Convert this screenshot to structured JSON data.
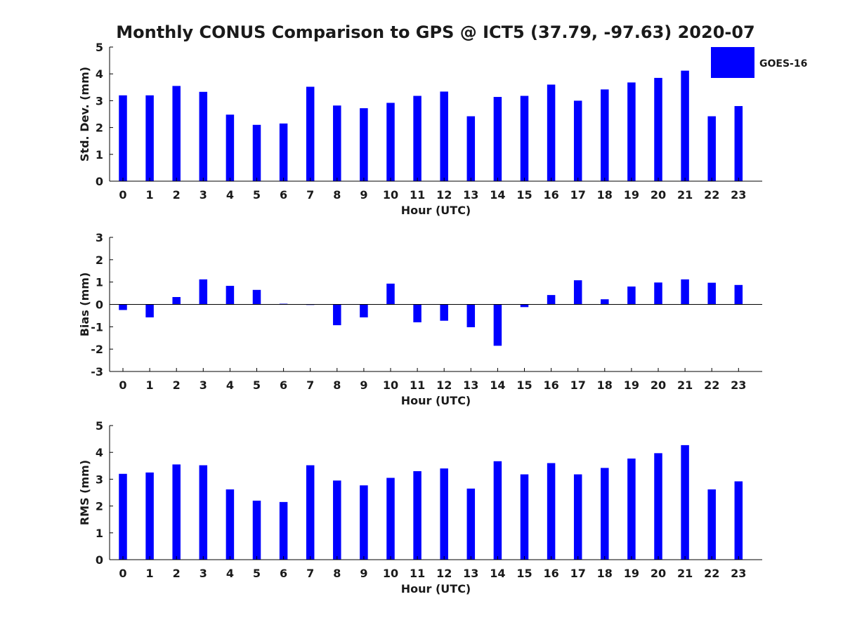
{
  "title": "Monthly CONUS Comparison to GPS @ ICT5 (37.79, -97.63) 2020-07",
  "legend": {
    "label": "GOES-16",
    "color": "#0000ff",
    "placement": "top-right"
  },
  "chart_data": [
    {
      "type": "bar",
      "xlabel": "Hour (UTC)",
      "ylabel": "Std. Dev. (mm)",
      "ylim": [
        0,
        5
      ],
      "yticks": [
        "0",
        "1",
        "2",
        "3",
        "4",
        "5"
      ],
      "categories": [
        "0",
        "1",
        "2",
        "3",
        "4",
        "5",
        "6",
        "7",
        "8",
        "9",
        "10",
        "11",
        "12",
        "13",
        "14",
        "15",
        "16",
        "17",
        "18",
        "19",
        "20",
        "21",
        "22",
        "23"
      ],
      "series": [
        {
          "name": "GOES-16",
          "values": [
            3.2,
            3.2,
            3.55,
            3.33,
            2.48,
            2.1,
            2.15,
            3.52,
            2.82,
            2.72,
            2.92,
            3.18,
            3.34,
            2.42,
            3.14,
            3.18,
            3.6,
            3.0,
            3.42,
            3.68,
            3.85,
            4.12,
            2.42,
            2.8
          ]
        }
      ],
      "grid": false
    },
    {
      "type": "bar",
      "xlabel": "Hour (UTC)",
      "ylabel": "Bias (mm)",
      "ylim": [
        -3,
        3
      ],
      "yticks": [
        "-3",
        "-2",
        "-1",
        "0",
        "1",
        "2",
        "3"
      ],
      "categories": [
        "0",
        "1",
        "2",
        "3",
        "4",
        "5",
        "6",
        "7",
        "8",
        "9",
        "10",
        "11",
        "12",
        "13",
        "14",
        "15",
        "16",
        "17",
        "18",
        "19",
        "20",
        "21",
        "22",
        "23"
      ],
      "series": [
        {
          "name": "GOES-16",
          "values": [
            -0.25,
            -0.58,
            0.33,
            1.12,
            0.83,
            0.65,
            0.03,
            -0.02,
            -0.93,
            -0.58,
            0.93,
            -0.8,
            -0.73,
            -1.02,
            -1.85,
            -0.12,
            0.42,
            1.08,
            0.23,
            0.8,
            0.98,
            1.12,
            0.97,
            0.87
          ]
        }
      ],
      "grid": false
    },
    {
      "type": "bar",
      "xlabel": "Hour (UTC)",
      "ylabel": "RMS (mm)",
      "ylim": [
        0,
        5
      ],
      "yticks": [
        "0",
        "1",
        "2",
        "3",
        "4",
        "5"
      ],
      "categories": [
        "0",
        "1",
        "2",
        "3",
        "4",
        "5",
        "6",
        "7",
        "8",
        "9",
        "10",
        "11",
        "12",
        "13",
        "14",
        "15",
        "16",
        "17",
        "18",
        "19",
        "20",
        "21",
        "22",
        "23"
      ],
      "series": [
        {
          "name": "GOES-16",
          "values": [
            3.2,
            3.25,
            3.55,
            3.52,
            2.62,
            2.2,
            2.15,
            3.52,
            2.95,
            2.77,
            3.05,
            3.3,
            3.4,
            2.65,
            3.67,
            3.18,
            3.6,
            3.18,
            3.42,
            3.77,
            3.97,
            4.27,
            2.62,
            2.92
          ]
        }
      ],
      "grid": false
    }
  ]
}
